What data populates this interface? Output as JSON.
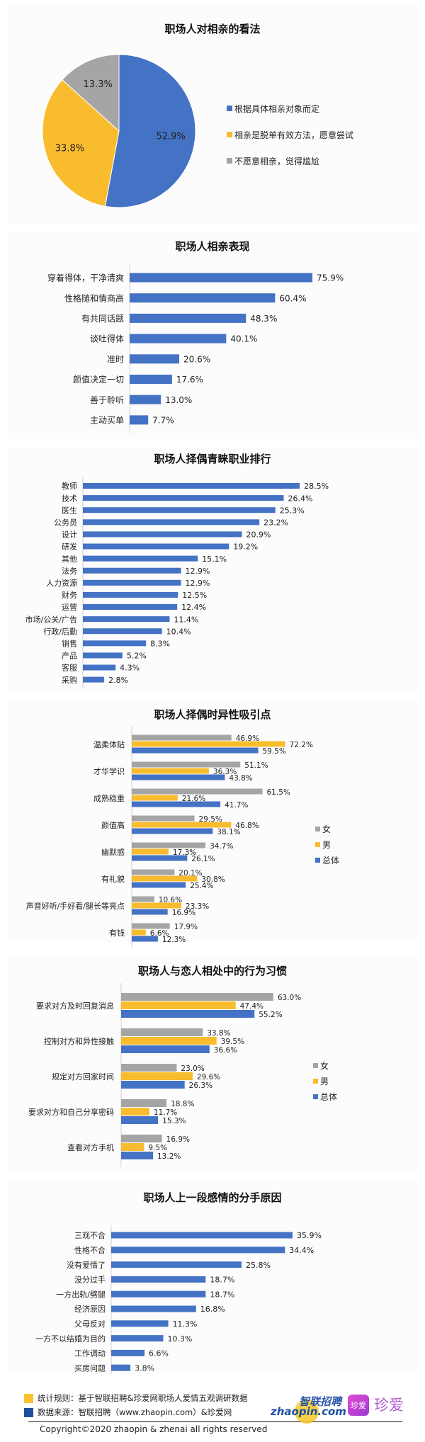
{
  "colors": {
    "blue": "#4472c4",
    "yellow": "#f9bc2e",
    "gray": "#a5a5a5",
    "text": "#222222"
  },
  "chart_data": [
    {
      "type": "pie",
      "title": "职场人对相亲的看法",
      "labels": [
        "根据具体相亲对象而定",
        "相亲是脱单有效方法，愿意尝试",
        "不愿意相亲，觉得尴尬"
      ],
      "values": [
        52.9,
        33.8,
        13.3
      ],
      "value_labels": [
        "52.9%",
        "33.8%",
        "13.3%"
      ],
      "legend": "right"
    },
    {
      "type": "bar",
      "orientation": "horizontal",
      "title": "职场人相亲表现",
      "categories": [
        "穿着得体，干净清爽",
        "性格随和情商高",
        "有共同话题",
        "谈吐得体",
        "准时",
        "颜值决定一切",
        "善于聆听",
        "主动买单"
      ],
      "values": [
        75.9,
        60.4,
        48.3,
        40.1,
        20.6,
        17.6,
        13.0,
        7.7
      ],
      "unit": "%"
    },
    {
      "type": "bar",
      "orientation": "horizontal",
      "title": "职场人择偶青睐职业排行",
      "categories": [
        "教师",
        "技术",
        "医生",
        "公务员",
        "设计",
        "研发",
        "其他",
        "法务",
        "人力资源",
        "财务",
        "运营",
        "市场/公关/广告",
        "行政/后勤",
        "销售",
        "产品",
        "客服",
        "采购"
      ],
      "values": [
        28.5,
        26.4,
        25.3,
        23.2,
        20.9,
        19.2,
        15.1,
        12.9,
        12.9,
        12.5,
        12.4,
        11.4,
        10.4,
        8.3,
        5.2,
        4.3,
        2.8
      ],
      "unit": "%"
    },
    {
      "type": "bar",
      "orientation": "horizontal",
      "title": "职场人择偶时异性吸引点",
      "categories": [
        "温柔体贴",
        "才华学识",
        "成熟稳重",
        "颜值高",
        "幽默感",
        "有礼貌",
        "声音好听/手好看/腿长等亮点",
        "有钱"
      ],
      "series": [
        {
          "name": "女",
          "values": [
            46.9,
            51.1,
            61.5,
            29.5,
            34.7,
            20.1,
            10.6,
            17.9
          ]
        },
        {
          "name": "男",
          "values": [
            72.2,
            36.3,
            21.6,
            46.8,
            17.3,
            30.8,
            23.3,
            6.6
          ]
        },
        {
          "name": "总体",
          "values": [
            59.5,
            43.8,
            41.7,
            38.1,
            26.1,
            25.4,
            16.9,
            12.3
          ]
        }
      ],
      "legend": "right",
      "unit": "%"
    },
    {
      "type": "bar",
      "orientation": "horizontal",
      "title": "职场人与恋人相处中的行为习惯",
      "categories": [
        "要求对方及时回复消息",
        "控制对方和异性接触",
        "规定对方回家时间",
        "要求对方和自己分享密码",
        "查看对方手机"
      ],
      "series": [
        {
          "name": "女",
          "values": [
            63.0,
            33.8,
            23.0,
            18.8,
            16.9
          ]
        },
        {
          "name": "男",
          "values": [
            47.4,
            39.5,
            29.6,
            11.7,
            9.5
          ]
        },
        {
          "name": "总体",
          "values": [
            55.2,
            36.6,
            26.3,
            15.3,
            13.2
          ]
        }
      ],
      "legend": "right",
      "unit": "%"
    },
    {
      "type": "bar",
      "orientation": "horizontal",
      "title": "职场人上一段感情的分手原因",
      "categories": [
        "三观不合",
        "性格不合",
        "没有爱情了",
        "没分过手",
        "一方出轨/劈腿",
        "经济原因",
        "父母反对",
        "一方不以结婚为目的",
        "工作调动",
        "买房问题"
      ],
      "values": [
        35.9,
        34.4,
        25.8,
        18.7,
        18.7,
        16.8,
        11.3,
        10.3,
        6.6,
        3.8
      ],
      "unit": "%"
    }
  ],
  "footer": {
    "rule": "统计规则：基于智联招聘&珍爱网职场人爱情五观调研数据",
    "source": "数据来源：智联招聘（www.zhaopin.com）&珍爱网",
    "copyright": "Copyright©2020 zhaopin & zhenai  all rights reserved",
    "logo_zhaopin_cn": "智联招聘",
    "logo_zhaopin_en": "zhaopin.com",
    "logo_zhenai_icon": "珍爱",
    "logo_zhenai_text": "珍爱"
  }
}
